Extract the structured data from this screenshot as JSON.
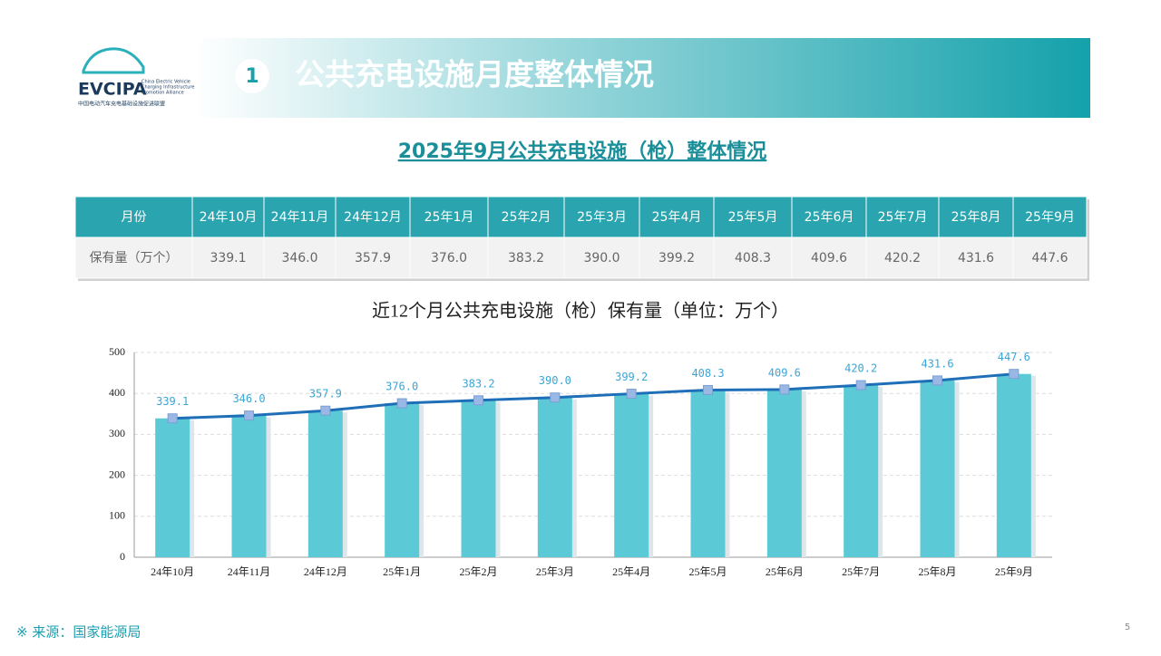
{
  "logo": {
    "name": "EVCIPA",
    "sub_en": [
      "China Electric Vehicle",
      "Charging Infrastructure",
      "Promotion Alliance"
    ],
    "sub_cn": "中国电动汽车充电基础设施促进联盟"
  },
  "header": {
    "number": "1",
    "title": "公共充电设施月度整体情况"
  },
  "subtitle": "2025年9月公共充电设施（枪）整体情况",
  "table": {
    "header": [
      "月份",
      "24年10月",
      "24年11月",
      "24年12月",
      "25年1月",
      "25年2月",
      "25年3月",
      "25年4月",
      "25年5月",
      "25年6月",
      "25年7月",
      "25年8月",
      "25年9月"
    ],
    "rows": [
      [
        "保有量（万个）",
        "339.1",
        "346.0",
        "357.9",
        "376.0",
        "383.2",
        "390.0",
        "399.2",
        "408.3",
        "409.6",
        "420.2",
        "431.6",
        "447.6"
      ]
    ]
  },
  "chart_data": {
    "type": "combo",
    "title": "近12个月公共充电设施（枪）保有量（单位：万个）",
    "categories": [
      "24年10月",
      "24年11月",
      "24年12月",
      "25年1月",
      "25年2月",
      "25年3月",
      "25年4月",
      "25年5月",
      "25年6月",
      "25年7月",
      "25年8月",
      "25年9月"
    ],
    "values": [
      339.1,
      346,
      357.9,
      376,
      383.2,
      390,
      399.2,
      408.3,
      409.6,
      420.2,
      431.6,
      447.6
    ],
    "value_labels": [
      "339.1",
      "346.0",
      "357.9",
      "376.0",
      "383.2",
      "390.0",
      "399.2",
      "408.3",
      "409.6",
      "420.2",
      "431.6",
      "447.6"
    ],
    "bar_color": "#5cc9d6",
    "line_color": "#1f6fb8",
    "marker_color": "#9bb8e4",
    "label_color": "#3aa6d6",
    "ylim": [
      0,
      500
    ],
    "yticks": [
      0,
      100,
      200,
      300,
      400,
      500
    ],
    "grid": true
  },
  "footer": {
    "source": "※ 来源：国家能源局",
    "page": "5"
  }
}
